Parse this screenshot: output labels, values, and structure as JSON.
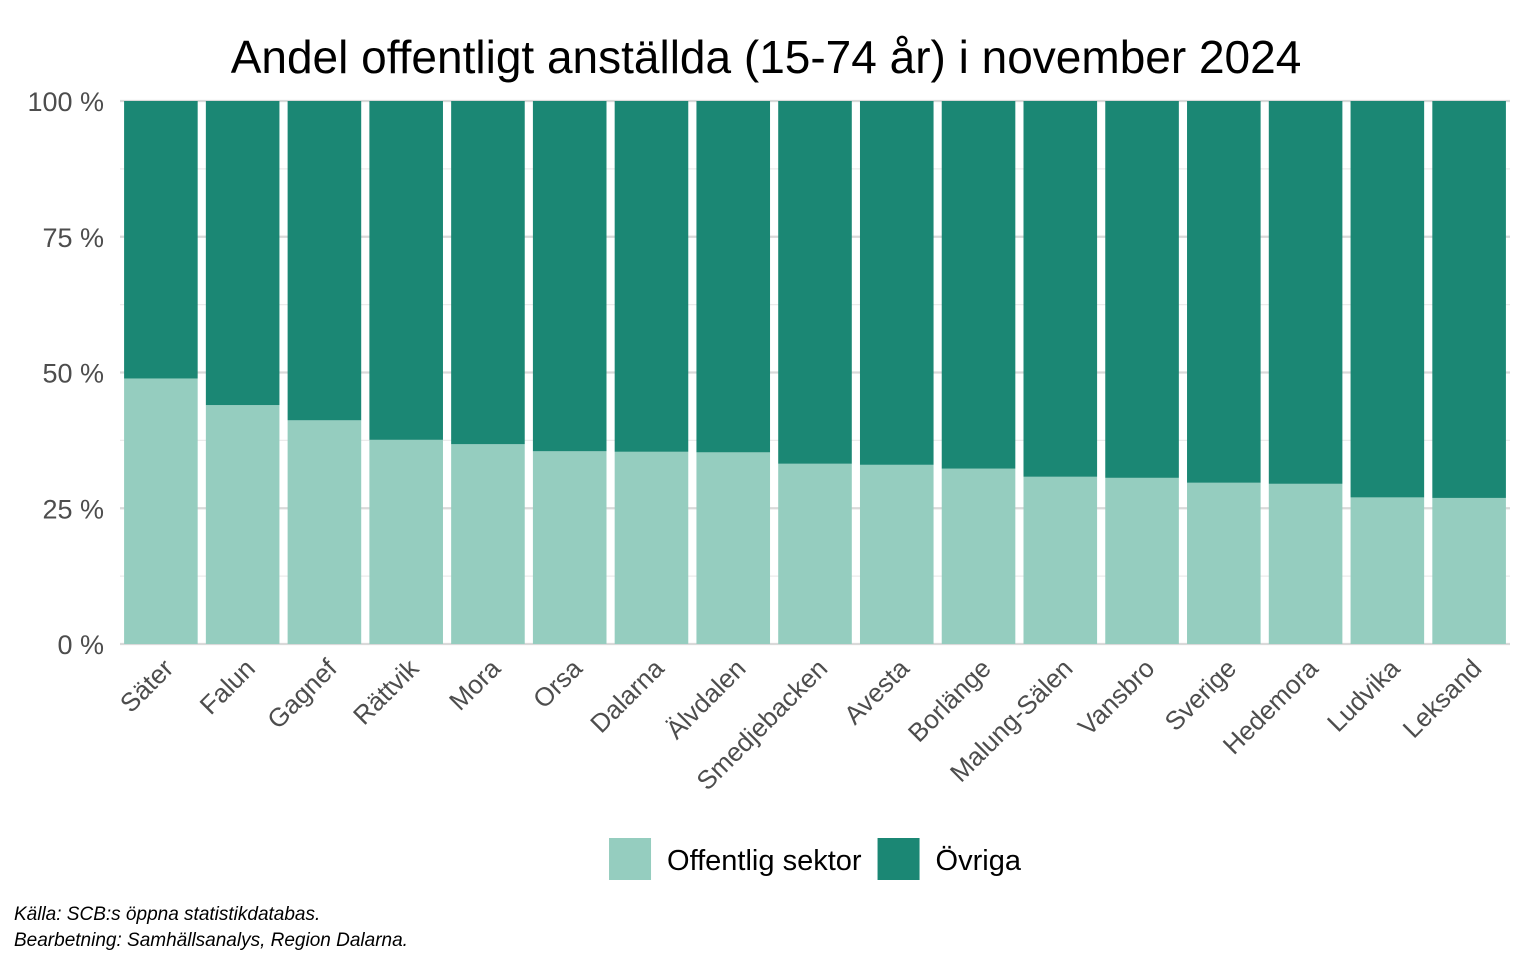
{
  "chart_data": {
    "type": "bar",
    "stacked": true,
    "title": "Andel offentligt anställda (15-74 år) i november 2024",
    "xlabel": "",
    "ylabel": "",
    "ylim": [
      0,
      100
    ],
    "y_ticks": [
      {
        "value": 0,
        "label": "0 %"
      },
      {
        "value": 25,
        "label": "25 %"
      },
      {
        "value": 50,
        "label": "50 %"
      },
      {
        "value": 75,
        "label": "75 %"
      },
      {
        "value": 100,
        "label": "100 %"
      }
    ],
    "grid": true,
    "legend_position": "bottom",
    "categories": [
      "Säter",
      "Falun",
      "Gagnef",
      "Rättvik",
      "Mora",
      "Orsa",
      "Dalarna",
      "Älvdalen",
      "Smedjebacken",
      "Avesta",
      "Borlänge",
      "Malung-Sälen",
      "Vansbro",
      "Sverige",
      "Hedemora",
      "Ludvika",
      "Leksand"
    ],
    "series": [
      {
        "name": "Offentlig sektor",
        "color": "#95cdbf",
        "values": [
          48.9,
          44.0,
          41.2,
          37.6,
          36.8,
          35.5,
          35.4,
          35.3,
          33.2,
          33.0,
          32.3,
          30.8,
          30.6,
          29.7,
          29.5,
          27.0,
          26.9
        ]
      },
      {
        "name": "Övriga",
        "color": "#1b8774",
        "values": [
          51.1,
          56.0,
          58.8,
          62.4,
          63.2,
          64.5,
          64.6,
          64.7,
          66.8,
          67.0,
          67.7,
          69.2,
          69.4,
          70.3,
          70.5,
          73.0,
          73.1
        ]
      }
    ],
    "caption": [
      "Källa: SCB:s öppna statistikdatabas.",
      "Bearbetning: Samhällsanalys, Region Dalarna."
    ]
  }
}
